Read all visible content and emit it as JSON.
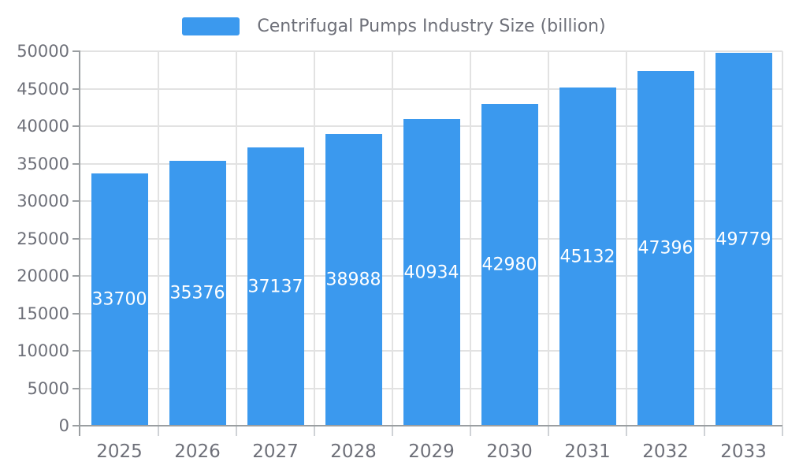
{
  "chart_data": {
    "type": "bar",
    "title": "Centrifugal Pumps Industry Size (billion)",
    "legend_entries": [
      "Centrifugal Pumps Industry Size (billion)"
    ],
    "legend_position": "top-center",
    "categories": [
      "2025",
      "2026",
      "2027",
      "2028",
      "2029",
      "2030",
      "2031",
      "2032",
      "2033"
    ],
    "series": [
      {
        "name": "Centrifugal Pumps Industry Size (billion)",
        "values": [
          33700,
          35376,
          37137,
          38988,
          40934,
          42980,
          45132,
          47396,
          49779
        ]
      }
    ],
    "xlabel": "",
    "ylabel": "",
    "ylim": [
      0,
      50000
    ],
    "y_tick_step": 5000,
    "y_ticks": [
      "0",
      "5000",
      "10000",
      "15000",
      "20000",
      "25000",
      "30000",
      "35000",
      "40000",
      "45000",
      "50000"
    ],
    "grid": true,
    "bar_labels_inside": true,
    "colors": {
      "bar": "#3B99EE",
      "bar_label": "#FFFFFF",
      "text": "#6E7079",
      "grid": "#E2E2E2",
      "axis": "#9A9EA1",
      "boundary_tick": "#CFD2D6",
      "background": "#FFFFFF"
    }
  }
}
